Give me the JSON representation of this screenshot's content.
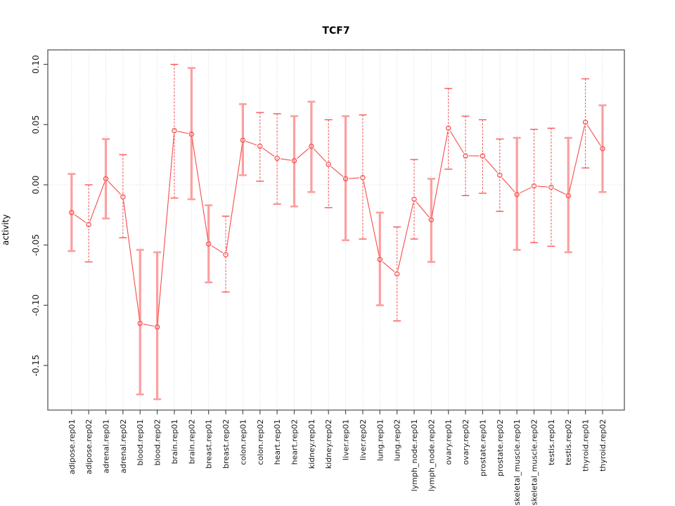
{
  "title": "TCF7",
  "ylabel": "activity",
  "colors": {
    "series_red": "#f84b4b",
    "errorbar_pink": "#fb9f9f",
    "grid_gray": "#d8d8d8",
    "box_gray": "#6e6e6e",
    "tick_gray": "#4d4d4d",
    "label_black": "#1a1a1a",
    "background": "#ffffff"
  },
  "chart_data": {
    "type": "line",
    "title": "TCF7",
    "xlabel": "",
    "ylabel": "activity",
    "legend": "none",
    "grid": "vertical dotted gridline at every category; dotted horizontal line at y=0",
    "marker": "open-circle",
    "ylim": [
      -0.187,
      0.112
    ],
    "yticks": [
      0.1,
      0.05,
      0.0,
      -0.05,
      -0.1,
      -0.15
    ],
    "ytick_labels": [
      "0.10",
      "0.05",
      "0.00",
      "-0.05",
      "-0.10",
      "-0.15"
    ],
    "categories": [
      "adipose.rep01",
      "adipose.rep02",
      "adrenal.rep01",
      "adrenal.rep02",
      "blood.rep01",
      "blood.rep02",
      "brain.rep01",
      "brain.rep02",
      "breast.rep01",
      "breast.rep02",
      "colon.rep01",
      "colon.rep02",
      "heart.rep01",
      "heart.rep02",
      "kidney.rep01",
      "kidney.rep02",
      "liver.rep01",
      "liver.rep02",
      "lung.rep01",
      "lung.rep02",
      "lymph_node.rep01",
      "lymph_node.rep02",
      "ovary.rep01",
      "ovary.rep02",
      "prostate.rep01",
      "prostate.rep02",
      "skeletal_muscle.rep01",
      "skeletal_muscle.rep02",
      "testis.rep01",
      "testis.rep02",
      "thyroid.rep01",
      "thyroid.rep02"
    ],
    "series": [
      {
        "name": "activity",
        "values": [
          -0.023,
          -0.033,
          0.005,
          -0.01,
          -0.115,
          -0.118,
          0.045,
          0.042,
          -0.049,
          -0.058,
          0.037,
          0.032,
          0.022,
          0.02,
          0.032,
          0.017,
          0.005,
          0.006,
          -0.062,
          -0.074,
          -0.012,
          -0.029,
          0.047,
          0.024,
          0.024,
          0.008,
          -0.008,
          -0.001,
          -0.002,
          -0.009,
          0.052,
          0.03
        ],
        "error_low": [
          -0.055,
          -0.064,
          -0.028,
          -0.044,
          -0.174,
          -0.178,
          -0.011,
          -0.012,
          -0.081,
          -0.089,
          0.008,
          0.003,
          -0.016,
          -0.018,
          -0.006,
          -0.019,
          -0.046,
          -0.045,
          -0.1,
          -0.113,
          -0.045,
          -0.064,
          0.013,
          -0.009,
          -0.007,
          -0.022,
          -0.054,
          -0.048,
          -0.051,
          -0.056,
          0.014,
          -0.006
        ],
        "error_high": [
          0.009,
          0.0,
          0.038,
          0.025,
          -0.054,
          -0.056,
          0.1,
          0.097,
          -0.017,
          -0.026,
          0.067,
          0.06,
          0.059,
          0.057,
          0.069,
          0.054,
          0.057,
          0.058,
          -0.023,
          -0.035,
          0.021,
          0.005,
          0.08,
          0.057,
          0.054,
          0.038,
          0.039,
          0.046,
          0.047,
          0.039,
          0.088,
          0.066
        ],
        "error_bar_styles": [
          "solid",
          "dashed",
          "solid",
          "dashed",
          "solid",
          "solid",
          "dashed",
          "solid",
          "solid",
          "dashed",
          "solid",
          "dashed",
          "dashed",
          "solid",
          "solid",
          "dashed",
          "solid",
          "dashed",
          "solid",
          "dashed",
          "dashed",
          "solid",
          "dashed",
          "dashed",
          "dashed",
          "dashed",
          "solid",
          "dashed",
          "dashed",
          "solid",
          "dashed",
          "solid"
        ]
      }
    ]
  }
}
